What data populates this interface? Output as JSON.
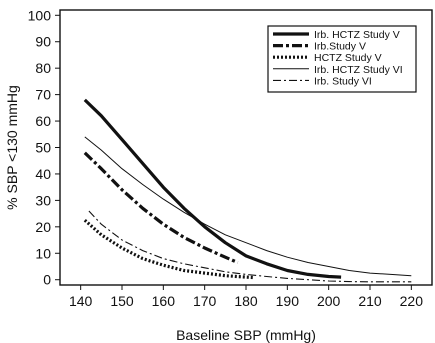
{
  "chart_data": {
    "type": "line",
    "title": "",
    "xlabel": "Baseline SBP (mmHg)",
    "ylabel": "% SBP <130 mmHg",
    "xlim": [
      135,
      225
    ],
    "ylim": [
      -2,
      102
    ],
    "xticks": [
      140,
      150,
      160,
      170,
      180,
      190,
      200,
      210,
      220
    ],
    "yticks": [
      0,
      10,
      20,
      30,
      40,
      50,
      60,
      70,
      80,
      90,
      100
    ],
    "grid": false,
    "legend_position": "top-right",
    "series": [
      {
        "name": "Irb. HCTZ Study V",
        "style": "solid-thick",
        "x": [
          141,
          145,
          150,
          155,
          160,
          165,
          170,
          175,
          180,
          185,
          190,
          195,
          200,
          203
        ],
        "y": [
          68,
          62,
          53,
          44,
          35,
          27,
          20,
          14,
          9,
          6,
          3.5,
          2,
          1.2,
          1
        ]
      },
      {
        "name": "Irb.Study V",
        "style": "dashdot-thick",
        "x": [
          141,
          145,
          150,
          155,
          160,
          165,
          170,
          175,
          178
        ],
        "y": [
          48,
          42,
          34,
          27,
          21,
          16,
          12,
          8.5,
          6.5
        ]
      },
      {
        "name": "HCTZ Study V",
        "style": "dotted-thick",
        "x": [
          141,
          145,
          150,
          155,
          160,
          165,
          170,
          175,
          180,
          182
        ],
        "y": [
          22.5,
          17,
          12,
          8,
          5.5,
          3.5,
          2.5,
          1.5,
          1,
          0.8
        ]
      },
      {
        "name": "Irb. HCTZ Study VI",
        "style": "solid-thin",
        "x": [
          141,
          145,
          150,
          155,
          160,
          165,
          170,
          175,
          180,
          185,
          190,
          195,
          200,
          205,
          210,
          215,
          220
        ],
        "y": [
          54,
          49,
          42,
          36,
          30.5,
          25.5,
          21,
          17,
          14,
          11,
          8.5,
          6.5,
          5,
          3.5,
          2.5,
          2,
          1.5
        ]
      },
      {
        "name": "Irb. Study VI",
        "style": "dashdot-thin",
        "x": [
          142,
          145,
          150,
          155,
          160,
          165,
          170,
          175,
          180,
          185,
          190,
          195,
          200,
          205,
          210,
          215,
          220
        ],
        "y": [
          26,
          21,
          15,
          11,
          8,
          6,
          4.5,
          3,
          2,
          1.2,
          0.5,
          0,
          -0.5,
          -0.7,
          -0.8,
          -0.8,
          -0.8
        ]
      }
    ]
  }
}
